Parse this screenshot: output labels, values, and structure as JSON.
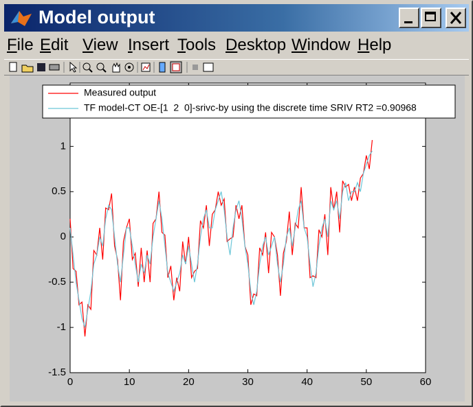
{
  "window": {
    "title": "Model output",
    "menu": [
      "File",
      "Edit",
      "View",
      "Insert",
      "Tools",
      "Desktop",
      "Window",
      "Help"
    ]
  },
  "chart_data": {
    "type": "line",
    "x": [
      0,
      0.5,
      1,
      1.5,
      2,
      2.5,
      3,
      3.5,
      4,
      4.5,
      5,
      5.5,
      6,
      6.5,
      7,
      7.5,
      8,
      8.5,
      9,
      9.5,
      10,
      10.5,
      11,
      11.5,
      12,
      12.5,
      13,
      13.5,
      14,
      14.5,
      15,
      15.5,
      16,
      16.5,
      17,
      17.5,
      18,
      18.5,
      19,
      19.5,
      20,
      20.5,
      21,
      21.5,
      22,
      22.5,
      23,
      23.5,
      24,
      24.5,
      25,
      25.5,
      26,
      26.5,
      27,
      27.5,
      28,
      28.5,
      29,
      29.5,
      30,
      30.5,
      31,
      31.5,
      32,
      32.5,
      33,
      33.5,
      34,
      34.5,
      35,
      35.5,
      36,
      36.5,
      37,
      37.5,
      38,
      38.5,
      39,
      39.5,
      40,
      40.5,
      41,
      41.5,
      42,
      42.5,
      43,
      43.5,
      44,
      44.5,
      45,
      45.5,
      46,
      46.5,
      47,
      47.5,
      48,
      48.5,
      49,
      49.5,
      50,
      50.5,
      51
    ],
    "series": [
      {
        "name": "Measured output",
        "color": "#ff0000",
        "values": [
          0.2,
          -0.35,
          -0.38,
          -0.75,
          -0.72,
          -1.1,
          -0.75,
          -0.8,
          -0.15,
          -0.2,
          0.1,
          -0.25,
          0.32,
          0.3,
          0.48,
          -0.1,
          -0.25,
          -0.7,
          -0.05,
          0.1,
          0.2,
          -0.25,
          -0.18,
          -0.55,
          -0.12,
          -0.5,
          -0.15,
          -0.5,
          0.15,
          0.2,
          0.5,
          0.05,
          0.02,
          -0.45,
          -0.32,
          -0.7,
          -0.45,
          -0.6,
          -0.05,
          -0.3,
          0.0,
          -0.45,
          -0.38,
          -0.35,
          0.18,
          0.1,
          0.35,
          -0.1,
          0.25,
          0.3,
          0.5,
          0.35,
          0.42,
          -0.05,
          -0.02,
          0.0,
          0.35,
          0.2,
          0.35,
          -0.1,
          -0.2,
          -0.75,
          -0.63,
          -0.65,
          -0.12,
          -0.2,
          0.05,
          -0.4,
          0.05,
          0.0,
          -0.2,
          -0.65,
          -0.18,
          -0.05,
          0.28,
          -0.2,
          0.15,
          0.1,
          0.55,
          0.1,
          0.1,
          -0.45,
          -0.43,
          -0.45,
          0.08,
          0.0,
          0.25,
          -0.2,
          0.55,
          0.3,
          0.5,
          0.05,
          0.62,
          0.55,
          0.58,
          0.4,
          0.55,
          0.4,
          0.65,
          0.7,
          0.9,
          0.75,
          1.07
        ]
      },
      {
        "name": "TF model-CT OE-[1  2  0]-srivc-by using the discrete time SRIV RT2 =0.90968",
        "color": "#6cc6d8",
        "values": [
          0.1,
          -0.2,
          -0.5,
          -0.7,
          -0.9,
          -1.0,
          -0.8,
          -0.6,
          -0.3,
          -0.2,
          0.0,
          -0.1,
          0.2,
          0.35,
          0.3,
          0.0,
          -0.3,
          -0.5,
          -0.2,
          0.1,
          0.1,
          -0.1,
          -0.3,
          -0.5,
          -0.3,
          -0.4,
          -0.2,
          -0.3,
          0.0,
          0.2,
          0.4,
          0.2,
          -0.1,
          -0.4,
          -0.5,
          -0.6,
          -0.5,
          -0.4,
          -0.2,
          -0.3,
          -0.1,
          -0.3,
          -0.5,
          -0.3,
          0.0,
          0.2,
          0.3,
          0.1,
          0.1,
          0.3,
          0.4,
          0.5,
          0.3,
          0.0,
          -0.2,
          0.1,
          0.3,
          0.4,
          0.2,
          -0.1,
          -0.3,
          -0.6,
          -0.75,
          -0.6,
          -0.3,
          -0.1,
          0.0,
          -0.2,
          -0.1,
          0.0,
          -0.3,
          -0.5,
          -0.3,
          0.0,
          0.1,
          -0.1,
          0.1,
          0.3,
          0.4,
          0.1,
          0.0,
          -0.3,
          -0.55,
          -0.4,
          -0.1,
          0.1,
          0.2,
          0.0,
          0.4,
          0.3,
          0.4,
          0.2,
          0.5,
          0.6,
          0.4,
          0.5,
          0.5,
          0.6,
          0.5,
          0.7,
          0.8,
          0.9,
          0.95
        ]
      }
    ],
    "xlim": [
      0,
      60
    ],
    "xticks": [
      0,
      10,
      20,
      30,
      40,
      50,
      60
    ],
    "ylim": [
      -1.5,
      1.7
    ],
    "yticks": [
      -1.5,
      -1,
      -0.5,
      0,
      0.5,
      1
    ],
    "legend": "top"
  }
}
